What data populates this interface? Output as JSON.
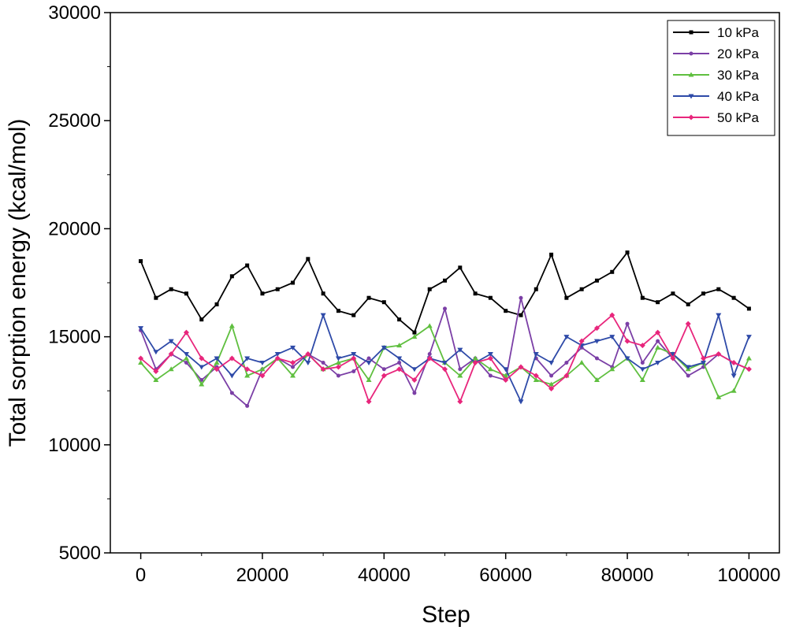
{
  "chart_data": {
    "type": "line",
    "title": "",
    "xlabel": "Step",
    "ylabel": "Total sorption energy (kcal/mol)",
    "xlim": [
      -5000,
      105000
    ],
    "ylim": [
      5000,
      30000
    ],
    "x_ticks": [
      0,
      20000,
      40000,
      60000,
      80000,
      100000
    ],
    "x_tick_labels": [
      "0",
      "20000",
      "40000",
      "60000",
      "80000",
      "100000"
    ],
    "y_ticks": [
      5000,
      10000,
      15000,
      20000,
      25000,
      30000
    ],
    "y_tick_labels": [
      "5000",
      "10000",
      "15000",
      "20000",
      "25000",
      "30000"
    ],
    "legend_position": "top-right",
    "grid": false,
    "x": [
      0,
      2500,
      5000,
      7500,
      10000,
      12500,
      15000,
      17500,
      20000,
      22500,
      25000,
      27500,
      30000,
      32500,
      35000,
      37500,
      40000,
      42500,
      45000,
      47500,
      50000,
      52500,
      55000,
      57500,
      60000,
      62500,
      65000,
      67500,
      70000,
      72500,
      75000,
      77500,
      80000,
      82500,
      85000,
      87500,
      90000,
      92500,
      95000,
      97500,
      100000
    ],
    "series": [
      {
        "name": "10 kPa",
        "color": "#000000",
        "marker": "square",
        "values": [
          18500,
          16800,
          17200,
          17000,
          15800,
          16500,
          17800,
          18300,
          17000,
          17200,
          17500,
          18600,
          17000,
          16200,
          16000,
          16800,
          16600,
          15800,
          15200,
          17200,
          17600,
          18200,
          17000,
          16800,
          16200,
          16000,
          17200,
          18800,
          16800,
          17200,
          17600,
          18000,
          18900,
          16800,
          16600,
          17000,
          16500,
          17000,
          17200,
          16800,
          16300
        ]
      },
      {
        "name": "20 kPa",
        "color": "#7b3fa6",
        "marker": "circle",
        "values": [
          15300,
          13500,
          14200,
          13800,
          13000,
          13600,
          12400,
          11800,
          13500,
          14000,
          13600,
          14200,
          13800,
          13200,
          13400,
          14000,
          13500,
          13800,
          12400,
          14200,
          16300,
          13500,
          14000,
          13200,
          13000,
          16800,
          14000,
          13200,
          13800,
          14500,
          14000,
          13600,
          15600,
          13800,
          14800,
          14000,
          13200,
          13600,
          14200,
          13800,
          13500
        ]
      },
      {
        "name": "30 kPa",
        "color": "#5fbf3f",
        "marker": "triangle-up",
        "values": [
          13800,
          13000,
          13500,
          14000,
          12800,
          13800,
          15500,
          13200,
          13500,
          14000,
          13200,
          14200,
          13500,
          13800,
          14000,
          13000,
          14500,
          14600,
          15000,
          15500,
          13800,
          13200,
          14000,
          13500,
          13200,
          13600,
          13000,
          12800,
          13200,
          13800,
          13000,
          13500,
          14000,
          13000,
          14500,
          14200,
          13500,
          13800,
          12200,
          12500,
          14000
        ]
      },
      {
        "name": "40 kPa",
        "color": "#2e4aa8",
        "marker": "triangle-down",
        "values": [
          15400,
          14300,
          14800,
          14200,
          13600,
          14000,
          13200,
          14000,
          13800,
          14200,
          14500,
          13800,
          16000,
          14000,
          14200,
          13800,
          14500,
          14000,
          13500,
          14000,
          13800,
          14400,
          13800,
          14200,
          13500,
          12000,
          14200,
          13800,
          15000,
          14600,
          14800,
          15000,
          14000,
          13500,
          13800,
          14200,
          13600,
          13800,
          16000,
          13200,
          15000
        ]
      },
      {
        "name": "50 kPa",
        "color": "#e8267c",
        "marker": "diamond",
        "values": [
          14000,
          13400,
          14200,
          15200,
          14000,
          13500,
          14000,
          13500,
          13200,
          14000,
          13800,
          14200,
          13500,
          13600,
          14000,
          12000,
          13200,
          13500,
          13000,
          14000,
          13500,
          12000,
          13800,
          14000,
          13000,
          13600,
          13200,
          12600,
          13200,
          14800,
          15400,
          16000,
          14800,
          14600,
          15200,
          14000,
          15600,
          14000,
          14200,
          13800,
          13500
        ]
      }
    ]
  }
}
